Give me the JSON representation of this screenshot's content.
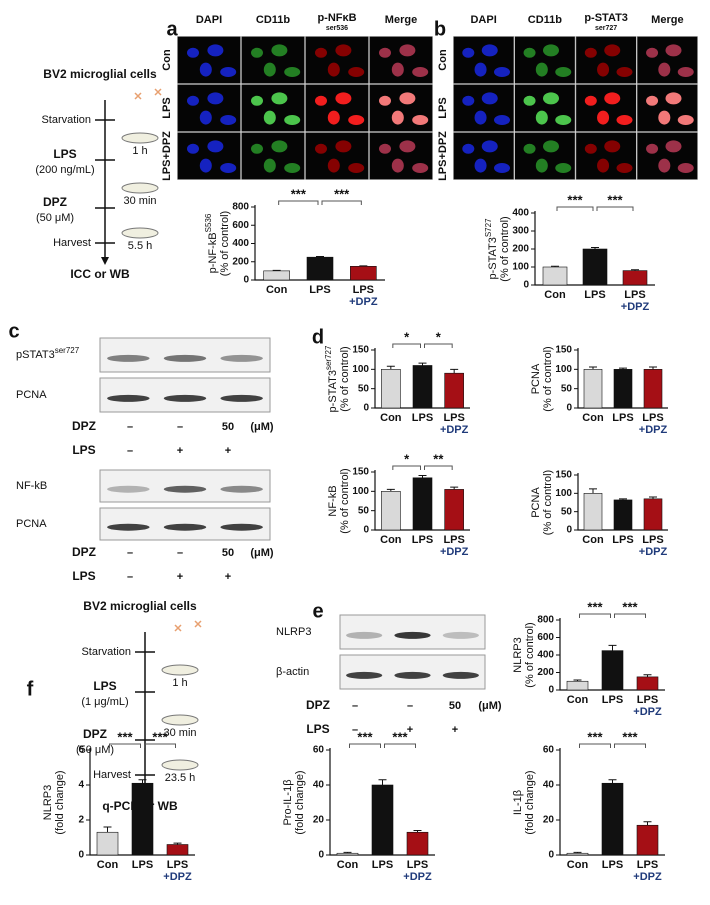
{
  "panels": {
    "a": {
      "letter": "a",
      "columns": [
        "DAPI",
        "CD11b",
        {
          "text": "p-NFκB",
          "sub": "ser536"
        },
        "Merge"
      ],
      "rows": [
        "Con",
        "LPS",
        "LPS+DPZ"
      ]
    },
    "b": {
      "letter": "b",
      "columns": [
        "DAPI",
        "CD11b",
        {
          "text": "p-STAT3",
          "sub": "ser727"
        },
        "Merge"
      ],
      "rows": [
        "Con",
        "LPS",
        "LPS+DPZ"
      ]
    },
    "protocol_1": {
      "title": "BV2 microglial cells",
      "starvation": "Starvation",
      "lps": "LPS",
      "lps_dose": "(200 ng/mL)",
      "dpz": "DPZ",
      "dpz_dose": "(50 μM)",
      "harvest": "Harvest",
      "durations": [
        "1 h",
        "30 min",
        "5.5 h"
      ],
      "readout": "ICC or WB"
    },
    "protocol_2": {
      "title": "BV2 microglial cells",
      "starvation": "Starvation",
      "lps": "LPS",
      "lps_dose": "(1 μg/mL)",
      "dpz": "DPZ",
      "dpz_dose": "(50 μM)",
      "harvest": "Harvest",
      "durations": [
        "1 h",
        "30 min",
        "23.5 h"
      ],
      "readout": "q-PCR or WB"
    },
    "c": {
      "letter": "c",
      "blot_1": {
        "rows": [
          {
            "text": "pSTAT3",
            "sup": "ser727"
          },
          {
            "text": "PCNA"
          }
        ]
      },
      "treatments_1": {
        "dpz": "DPZ",
        "dpz_levels": [
          "–",
          "–",
          "50"
        ],
        "unit": "(μM)",
        "lps": "LPS",
        "lps_levels": [
          "–",
          "+",
          "+"
        ]
      },
      "blot_2": {
        "rows": [
          {
            "text": "NF-kB"
          },
          {
            "text": "PCNA"
          }
        ]
      },
      "treatments_2": {
        "dpz": "DPZ",
        "dpz_levels": [
          "–",
          "–",
          "50"
        ],
        "unit": "(μM)",
        "lps": "LPS",
        "lps_levels": [
          "–",
          "+",
          "+"
        ]
      }
    },
    "d": {
      "letter": "d"
    },
    "e": {
      "letter": "e",
      "blot": {
        "rows": [
          {
            "text": "NLRP3"
          },
          {
            "text": "β-actin"
          }
        ]
      },
      "treatments": {
        "dpz": "DPZ",
        "dpz_levels": [
          "–",
          "–",
          "50"
        ],
        "unit": "(μM)",
        "lps": "LPS",
        "lps_levels": [
          "–",
          "+",
          "+"
        ]
      }
    },
    "f": {
      "letter": "f"
    }
  },
  "chart_data": [
    {
      "type": "bar",
      "ylabel": {
        "text": "p-NF-kB",
        "sup": "S536",
        "line2": "(% of control)"
      },
      "categories": [
        "Con",
        "LPS",
        "LPS\n+DPZ"
      ],
      "values": [
        100,
        250,
        150
      ],
      "errors": [
        5,
        8,
        5
      ],
      "colors": [
        "#d9d9d9",
        "#111111",
        "#a50f15"
      ],
      "ylim": [
        0,
        800
      ],
      "yticks": [
        0,
        200,
        400,
        600,
        800
      ],
      "annotations": [
        {
          "text": "***",
          "from": 0,
          "to": 1
        },
        {
          "text": "***",
          "from": 1,
          "to": 2
        }
      ]
    },
    {
      "type": "bar",
      "ylabel": {
        "text": "p-STAT3",
        "sup": "S727",
        "line2": "(% of control)"
      },
      "categories": [
        "Con",
        "LPS",
        "LPS\n+DPZ"
      ],
      "values": [
        100,
        200,
        80
      ],
      "errors": [
        4,
        8,
        5
      ],
      "colors": [
        "#d9d9d9",
        "#111111",
        "#a50f15"
      ],
      "ylim": [
        0,
        400
      ],
      "yticks": [
        0,
        100,
        200,
        300,
        400
      ],
      "annotations": [
        {
          "text": "***",
          "from": 0,
          "to": 1
        },
        {
          "text": "***",
          "from": 1,
          "to": 2
        }
      ]
    },
    {
      "type": "bar",
      "ylabel": {
        "text": "p-STAT3",
        "sup": "ser727",
        "line2": "(% of control)"
      },
      "categories": [
        "Con",
        "LPS",
        "LPS\n+DPZ"
      ],
      "values": [
        100,
        110,
        90
      ],
      "errors": [
        8,
        6,
        10
      ],
      "colors": [
        "#d9d9d9",
        "#111111",
        "#a50f15"
      ],
      "ylim": [
        0,
        150
      ],
      "yticks": [
        0,
        50,
        100,
        150
      ],
      "annotations": [
        {
          "text": "*",
          "from": 0,
          "to": 1
        },
        {
          "text": "*",
          "from": 1,
          "to": 2
        }
      ]
    },
    {
      "type": "bar",
      "ylabel": {
        "text": "PCNA",
        "line2": "(% of control)"
      },
      "categories": [
        "Con",
        "LPS",
        "LPS\n+DPZ"
      ],
      "values": [
        100,
        100,
        100
      ],
      "errors": [
        6,
        3,
        6
      ],
      "colors": [
        "#d9d9d9",
        "#111111",
        "#a50f15"
      ],
      "ylim": [
        0,
        150
      ],
      "yticks": [
        0,
        50,
        100,
        150
      ]
    },
    {
      "type": "bar",
      "ylabel": {
        "text": "NF-kB",
        "line2": "(% of control)"
      },
      "categories": [
        "Con",
        "LPS",
        "LPS\n+DPZ"
      ],
      "values": [
        100,
        135,
        105
      ],
      "errors": [
        5,
        6,
        6
      ],
      "colors": [
        "#d9d9d9",
        "#111111",
        "#a50f15"
      ],
      "ylim": [
        0,
        150
      ],
      "yticks": [
        0,
        50,
        100,
        150
      ],
      "annotations": [
        {
          "text": "*",
          "from": 0,
          "to": 1
        },
        {
          "text": "**",
          "from": 1,
          "to": 2
        }
      ]
    },
    {
      "type": "bar",
      "ylabel": {
        "text": "PCNA",
        "line2": "(% of control)"
      },
      "categories": [
        "Con",
        "LPS",
        "LPS\n+DPZ"
      ],
      "values": [
        100,
        82,
        85
      ],
      "errors": [
        12,
        3,
        5
      ],
      "colors": [
        "#d9d9d9",
        "#111111",
        "#a50f15"
      ],
      "ylim": [
        0,
        150
      ],
      "yticks": [
        0,
        50,
        100,
        150
      ]
    },
    {
      "type": "bar",
      "ylabel": {
        "text": "NLRP3",
        "line2": "(% of control)"
      },
      "categories": [
        "Con",
        "LPS",
        "LPS\n+DPZ"
      ],
      "values": [
        100,
        450,
        150
      ],
      "errors": [
        15,
        60,
        25
      ],
      "colors": [
        "#d9d9d9",
        "#111111",
        "#a50f15"
      ],
      "ylim": [
        0,
        800
      ],
      "yticks": [
        0,
        200,
        400,
        600,
        800
      ],
      "annotations": [
        {
          "text": "***",
          "from": 0,
          "to": 1
        },
        {
          "text": "***",
          "from": 1,
          "to": 2
        }
      ]
    },
    {
      "type": "bar",
      "ylabel": {
        "text": "NLRP3",
        "line2": "(fold change)"
      },
      "categories": [
        "Con",
        "LPS",
        "LPS\n+DPZ"
      ],
      "values": [
        1.3,
        4.1,
        0.6
      ],
      "errors": [
        0.3,
        0.2,
        0.08
      ],
      "colors": [
        "#d9d9d9",
        "#111111",
        "#a50f15"
      ],
      "ylim": [
        0,
        6
      ],
      "yticks": [
        0,
        2,
        4,
        6
      ],
      "annotations": [
        {
          "text": "***",
          "from": 0,
          "to": 1
        },
        {
          "text": "***",
          "from": 1,
          "to": 2
        }
      ]
    },
    {
      "type": "bar",
      "ylabel": {
        "text": "Pro-IL-1β",
        "line2": "(fold change)"
      },
      "categories": [
        "Con",
        "LPS",
        "LPS\n+DPZ"
      ],
      "values": [
        1,
        40,
        13
      ],
      "errors": [
        0.5,
        3,
        1
      ],
      "colors": [
        "#d9d9d9",
        "#111111",
        "#a50f15"
      ],
      "ylim": [
        0,
        60
      ],
      "yticks": [
        0,
        20,
        40,
        60
      ],
      "annotations": [
        {
          "text": "***",
          "from": 0,
          "to": 1
        },
        {
          "text": "***",
          "from": 1,
          "to": 2
        }
      ]
    },
    {
      "type": "bar",
      "ylabel": {
        "text": "IL-1β",
        "line2": "(fold change)"
      },
      "categories": [
        "Con",
        "LPS",
        "LPS\n+DPZ"
      ],
      "values": [
        1,
        41,
        17
      ],
      "errors": [
        0.5,
        2,
        2
      ],
      "colors": [
        "#d9d9d9",
        "#111111",
        "#a50f15"
      ],
      "ylim": [
        0,
        60
      ],
      "yticks": [
        0,
        20,
        40,
        60
      ],
      "annotations": [
        {
          "text": "***",
          "from": 0,
          "to": 1
        },
        {
          "text": "***",
          "from": 1,
          "to": 2
        }
      ]
    }
  ]
}
